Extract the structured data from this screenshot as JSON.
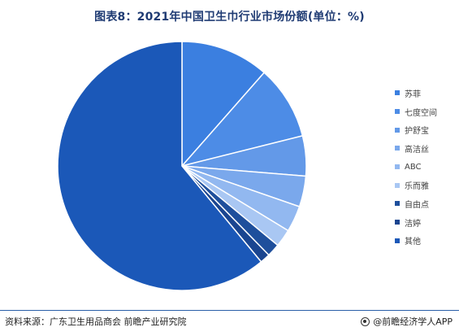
{
  "title": "图表8：2021年中国卫生巾行业市场份额(单位：%)",
  "chart_data": {
    "type": "pie",
    "title": "图表8：2021年中国卫生巾行业市场份额(单位：%)",
    "legend_position": "right",
    "slices": [
      {
        "name": "苏菲",
        "value": 11.5,
        "color": "#3b7fe0"
      },
      {
        "name": "七度空间",
        "value": 9.6,
        "color": "#4d8ce6"
      },
      {
        "name": "护舒宝",
        "value": 5.2,
        "color": "#6399e8"
      },
      {
        "name": "高洁丝",
        "value": 4.0,
        "color": "#7aa8ec"
      },
      {
        "name": "ABC",
        "value": 3.4,
        "color": "#92b8f0"
      },
      {
        "name": "乐而雅",
        "value": 2.3,
        "color": "#a9c7f3"
      },
      {
        "name": "自由点",
        "value": 1.7,
        "color": "#1e4f9c"
      },
      {
        "name": "洁婷",
        "value": 1.3,
        "color": "#1a4590"
      },
      {
        "name": "其他",
        "value": 61.0,
        "color": "#1b58b8"
      }
    ]
  },
  "footer": {
    "source": "资料来源：广东卫生用品商会 前瞻产业研究院",
    "brand": "@前瞻经济学人APP"
  }
}
